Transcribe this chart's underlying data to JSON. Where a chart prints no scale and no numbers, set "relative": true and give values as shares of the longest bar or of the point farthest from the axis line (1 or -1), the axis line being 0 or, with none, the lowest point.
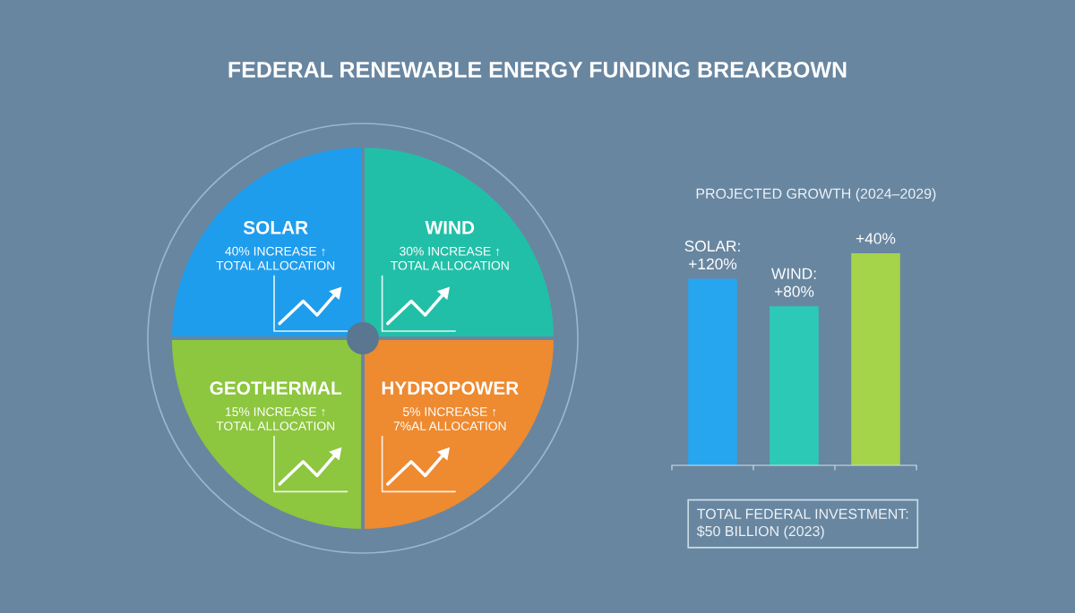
{
  "chart_data": [
    {
      "type": "pie",
      "title": "FEDERAL RENEWABLE ENERGY FUNDING BREAKBOWN",
      "categories": [
        "SOLAR",
        "WIND",
        "HYDROPOWER",
        "GEOTHERMAL"
      ],
      "values": [
        25,
        25,
        25,
        25
      ],
      "colors": [
        "#1f9ded",
        "#22bfa8",
        "#ee8a30",
        "#8dc63f"
      ],
      "annotations": [
        "40% INCREASE ↑\nTOTAL ALLOCATION",
        "30% INCREASE ↑\nTOTAL ALLOCATION",
        "5% INCREASE ↑\n7%AL ALLOCATION",
        "15% INCREASE ↑\nTOTAL ALLOCATION"
      ]
    },
    {
      "type": "bar",
      "title": "PROJECTED GROWTH (2024–2029)",
      "categories": [
        null,
        null,
        null
      ],
      "values": [
        0.88,
        0.75,
        1
      ],
      "colors": [
        "#27a6f0",
        "#2ccab6",
        "#a5d34a"
      ],
      "relative": true,
      "annotations": [
        {
          "text": "SOLAR:\n+120%",
          "y": 0.88
        },
        {
          "text": "WIND:\n+80%",
          "y": 0.75
        },
        {
          "text": "+40%",
          "y": 1
        },
        "TOTAL FEDERAL INVESTMENT:\n$50 BILLION (2023)"
      ]
    }
  ]
}
